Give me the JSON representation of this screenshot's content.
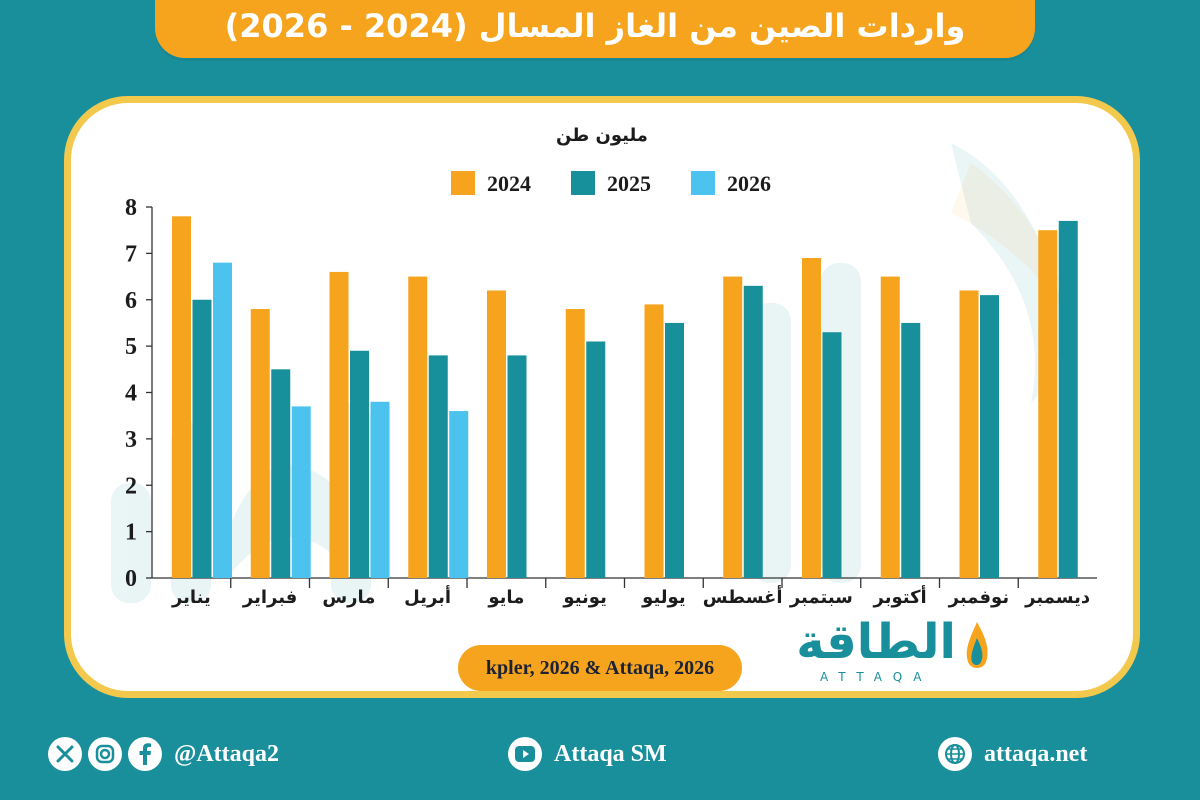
{
  "title": "واردات الصين من الغاز المسال (2024 - 2026)",
  "source": "kpler, 2026 & Attaqa, 2026",
  "brand": {
    "arabic": "الطاقة",
    "english": "ATTAQA"
  },
  "footer": {
    "social_handle": "@Attaqa2",
    "youtube": "Attaqa SM",
    "website": "attaqa.net",
    "icons": [
      "x-icon",
      "instagram-icon",
      "facebook-icon",
      "youtube-icon",
      "globe-icon"
    ]
  },
  "colors": {
    "background": "#1a8f9c",
    "banner": "#f6a41e",
    "card_border": "#f2c94c",
    "series_2024": "#f6a41e",
    "series_2025": "#17909c",
    "series_2026": "#4bc3ee"
  },
  "chart_data": {
    "type": "bar",
    "title": "",
    "ylabel": "مليون طن",
    "xlabel": "",
    "ylim": [
      0,
      8
    ],
    "yticks": [
      0,
      1,
      2,
      3,
      4,
      5,
      6,
      7,
      8
    ],
    "grid": false,
    "legend_position": "top",
    "categories": [
      "يناير",
      "فبراير",
      "مارس",
      "أبريل",
      "مايو",
      "يونيو",
      "يوليو",
      "أغسطس",
      "سبتمبر",
      "أكتوبر",
      "نوفمبر",
      "ديسمبر"
    ],
    "series": [
      {
        "name": "2024",
        "values": [
          7.8,
          5.8,
          6.6,
          6.5,
          6.2,
          5.8,
          5.9,
          6.5,
          6.9,
          6.5,
          6.2,
          7.5
        ]
      },
      {
        "name": "2025",
        "values": [
          6.0,
          4.5,
          4.9,
          4.8,
          4.8,
          5.1,
          5.5,
          6.3,
          5.3,
          5.5,
          6.1,
          7.7
        ]
      },
      {
        "name": "2026",
        "values": [
          6.8,
          3.7,
          3.8,
          3.6,
          null,
          null,
          null,
          null,
          null,
          null,
          null,
          null
        ]
      }
    ]
  }
}
